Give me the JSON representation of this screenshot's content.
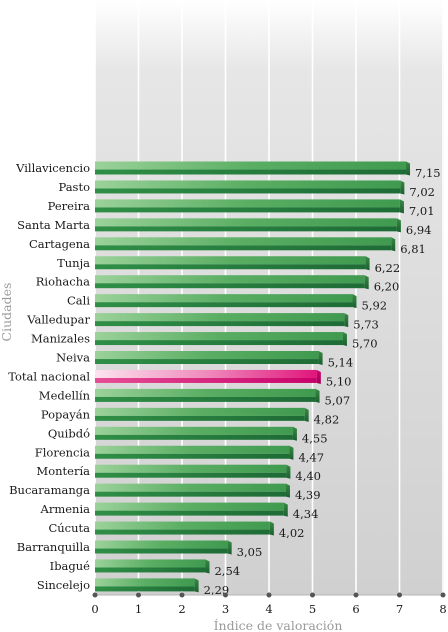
{
  "chart_data": {
    "type": "bar",
    "orientation": "horizontal",
    "xlabel": "Índice de valoración",
    "ylabel": "Ciudades",
    "xlim": [
      0,
      8
    ],
    "x_ticks": [
      "0",
      "1",
      "2",
      "3",
      "4",
      "5",
      "6",
      "7",
      "8"
    ],
    "grid": true,
    "highlight_category": "Total nacional",
    "colors": {
      "bar": "#3f9a52",
      "highlight": "#e0157a"
    },
    "categories": [
      "Villavicencio",
      "Pasto",
      "Pereira",
      "Santa Marta",
      "Cartagena",
      "Tunja",
      "Riohacha",
      "Cali",
      "Valledupar",
      "Manizales",
      "Neiva",
      "Total nacional",
      "Medellín",
      "Popayán",
      "Quibdó",
      "Florencia",
      "Montería",
      "Bucaramanga",
      "Armenia",
      "Cúcuta",
      "Barranquilla",
      "Ibagué",
      "Sincelejo"
    ],
    "values": [
      7.15,
      7.02,
      7.01,
      6.94,
      6.81,
      6.22,
      6.2,
      5.92,
      5.73,
      5.7,
      5.14,
      5.1,
      5.07,
      4.82,
      4.55,
      4.47,
      4.4,
      4.39,
      4.34,
      4.02,
      3.05,
      2.54,
      2.29
    ],
    "value_labels": [
      "7,15",
      "7,02",
      "7,01",
      "6,94",
      "6,81",
      "6,22",
      "6,20",
      "5,92",
      "5,73",
      "5,70",
      "5,14",
      "5,10",
      "5,07",
      "4,82",
      "4,55",
      "4,47",
      "4,40",
      "4,39",
      "4,34",
      "4,02",
      "3,05",
      "2,54",
      "2,29"
    ]
  }
}
